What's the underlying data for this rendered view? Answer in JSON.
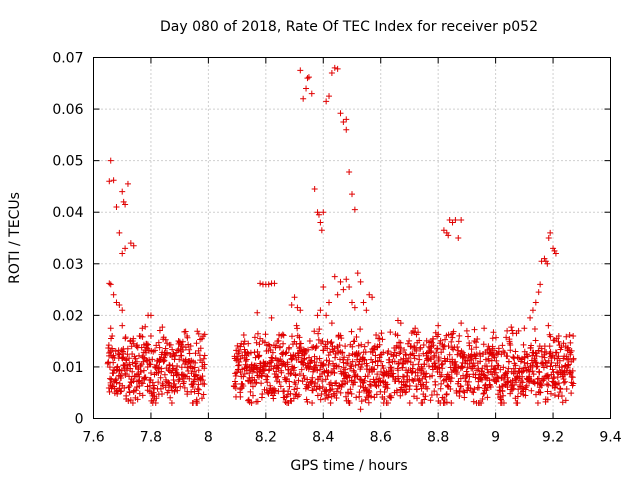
{
  "chart_data": {
    "type": "scatter",
    "title": "Day 080 of 2018, Rate Of TEC Index for receiver p052",
    "xlabel": "GPS time / hours",
    "ylabel": "ROTI / TECUs",
    "xlim": [
      7.6,
      9.4
    ],
    "ylim": [
      0,
      0.07
    ],
    "x_ticks": [
      "7.6",
      "7.8",
      "8",
      "8.2",
      "8.4",
      "8.6",
      "8.8",
      "9",
      "9.2",
      "9.4"
    ],
    "y_ticks": [
      "0",
      "0.01",
      "0.02",
      "0.03",
      "0.04",
      "0.05",
      "0.06",
      "0.07"
    ],
    "grid": true,
    "marker": "+",
    "marker_color": "#e00000",
    "series": [
      {
        "name": "ROTI",
        "points": [
          [
            7.66,
            0.05
          ],
          [
            7.655,
            0.046
          ],
          [
            7.67,
            0.0462
          ],
          [
            7.68,
            0.041
          ],
          [
            7.69,
            0.036
          ],
          [
            7.7,
            0.044
          ],
          [
            7.705,
            0.042
          ],
          [
            7.71,
            0.0415
          ],
          [
            7.72,
            0.0455
          ],
          [
            7.7,
            0.032
          ],
          [
            7.71,
            0.033
          ],
          [
            7.73,
            0.034
          ],
          [
            7.74,
            0.0335
          ],
          [
            7.655,
            0.0262
          ],
          [
            7.66,
            0.026
          ],
          [
            7.67,
            0.024
          ],
          [
            7.68,
            0.0225
          ],
          [
            7.69,
            0.022
          ],
          [
            7.7,
            0.021
          ],
          [
            7.66,
            0.0175
          ],
          [
            7.665,
            0.016
          ],
          [
            7.7,
            0.018
          ],
          [
            7.73,
            0.015
          ],
          [
            7.74,
            0.0145
          ],
          [
            7.75,
            0.014
          ],
          [
            7.76,
            0.016
          ],
          [
            7.77,
            0.0175
          ],
          [
            7.78,
            0.0178
          ],
          [
            7.79,
            0.02
          ],
          [
            7.8,
            0.02
          ],
          [
            7.8,
            0.016
          ],
          [
            8.17,
            0.0205
          ],
          [
            8.18,
            0.0155
          ],
          [
            8.18,
            0.0262
          ],
          [
            8.19,
            0.026
          ],
          [
            8.2,
            0.026
          ],
          [
            8.21,
            0.026
          ],
          [
            8.22,
            0.0262
          ],
          [
            8.23,
            0.0262
          ],
          [
            8.22,
            0.0195
          ],
          [
            8.24,
            0.015
          ],
          [
            8.26,
            0.0145
          ],
          [
            8.28,
            0.0135
          ],
          [
            8.29,
            0.022
          ],
          [
            8.3,
            0.0235
          ],
          [
            8.31,
            0.0215
          ],
          [
            8.32,
            0.021
          ],
          [
            8.32,
            0.0675
          ],
          [
            8.33,
            0.062
          ],
          [
            8.34,
            0.064
          ],
          [
            8.345,
            0.066
          ],
          [
            8.35,
            0.0662
          ],
          [
            8.36,
            0.063
          ],
          [
            8.37,
            0.0445
          ],
          [
            8.38,
            0.04
          ],
          [
            8.385,
            0.0395
          ],
          [
            8.39,
            0.038
          ],
          [
            8.395,
            0.0365
          ],
          [
            8.4,
            0.04
          ],
          [
            8.41,
            0.0615
          ],
          [
            8.42,
            0.0625
          ],
          [
            8.43,
            0.067
          ],
          [
            8.44,
            0.068
          ],
          [
            8.45,
            0.0678
          ],
          [
            8.46,
            0.0592
          ],
          [
            8.47,
            0.0575
          ],
          [
            8.48,
            0.058
          ],
          [
            8.48,
            0.056
          ],
          [
            8.49,
            0.0478
          ],
          [
            8.5,
            0.0435
          ],
          [
            8.51,
            0.0405
          ],
          [
            8.38,
            0.02
          ],
          [
            8.39,
            0.021
          ],
          [
            8.4,
            0.0255
          ],
          [
            8.41,
            0.02
          ],
          [
            8.42,
            0.0225
          ],
          [
            8.43,
            0.0185
          ],
          [
            8.44,
            0.0275
          ],
          [
            8.45,
            0.024
          ],
          [
            8.46,
            0.0265
          ],
          [
            8.47,
            0.025
          ],
          [
            8.48,
            0.027
          ],
          [
            8.49,
            0.0255
          ],
          [
            8.5,
            0.0225
          ],
          [
            8.51,
            0.0215
          ],
          [
            8.52,
            0.0282
          ],
          [
            8.53,
            0.0265
          ],
          [
            8.54,
            0.0225
          ],
          [
            8.55,
            0.021
          ],
          [
            8.56,
            0.024
          ],
          [
            8.57,
            0.0235
          ],
          [
            8.53,
            0.0018
          ],
          [
            8.82,
            0.0365
          ],
          [
            8.83,
            0.036
          ],
          [
            8.835,
            0.0355
          ],
          [
            8.84,
            0.0385
          ],
          [
            8.85,
            0.038
          ],
          [
            8.86,
            0.0385
          ],
          [
            8.87,
            0.035
          ],
          [
            8.88,
            0.0385
          ],
          [
            9.1,
            0.0175
          ],
          [
            9.12,
            0.0195
          ],
          [
            9.13,
            0.021
          ],
          [
            9.14,
            0.0225
          ],
          [
            9.15,
            0.0245
          ],
          [
            9.155,
            0.026
          ],
          [
            9.16,
            0.0305
          ],
          [
            9.17,
            0.031
          ],
          [
            9.175,
            0.0305
          ],
          [
            9.18,
            0.03
          ],
          [
            9.185,
            0.035
          ],
          [
            9.19,
            0.036
          ],
          [
            9.2,
            0.033
          ],
          [
            9.205,
            0.0325
          ],
          [
            9.21,
            0.032
          ],
          [
            8.66,
            0.019
          ],
          [
            8.67,
            0.0185
          ],
          [
            8.72,
            0.0175
          ],
          [
            8.8,
            0.018
          ],
          [
            8.88,
            0.0185
          ],
          [
            8.9,
            0.017
          ],
          [
            8.96,
            0.0175
          ],
          [
            9.04,
            0.017
          ],
          [
            9.06,
            0.0165
          ],
          [
            9.08,
            0.017
          ],
          [
            9.22,
            0.016
          ],
          [
            9.27,
            0.016
          ]
        ]
      }
    ],
    "dense_band": {
      "description": "dense cloud of points between 0.003 and 0.018",
      "segments": [
        [
          7.65,
          7.99
        ],
        [
          8.09,
          9.27
        ]
      ],
      "y_range": [
        0.003,
        0.018
      ],
      "center": 0.0095
    }
  }
}
